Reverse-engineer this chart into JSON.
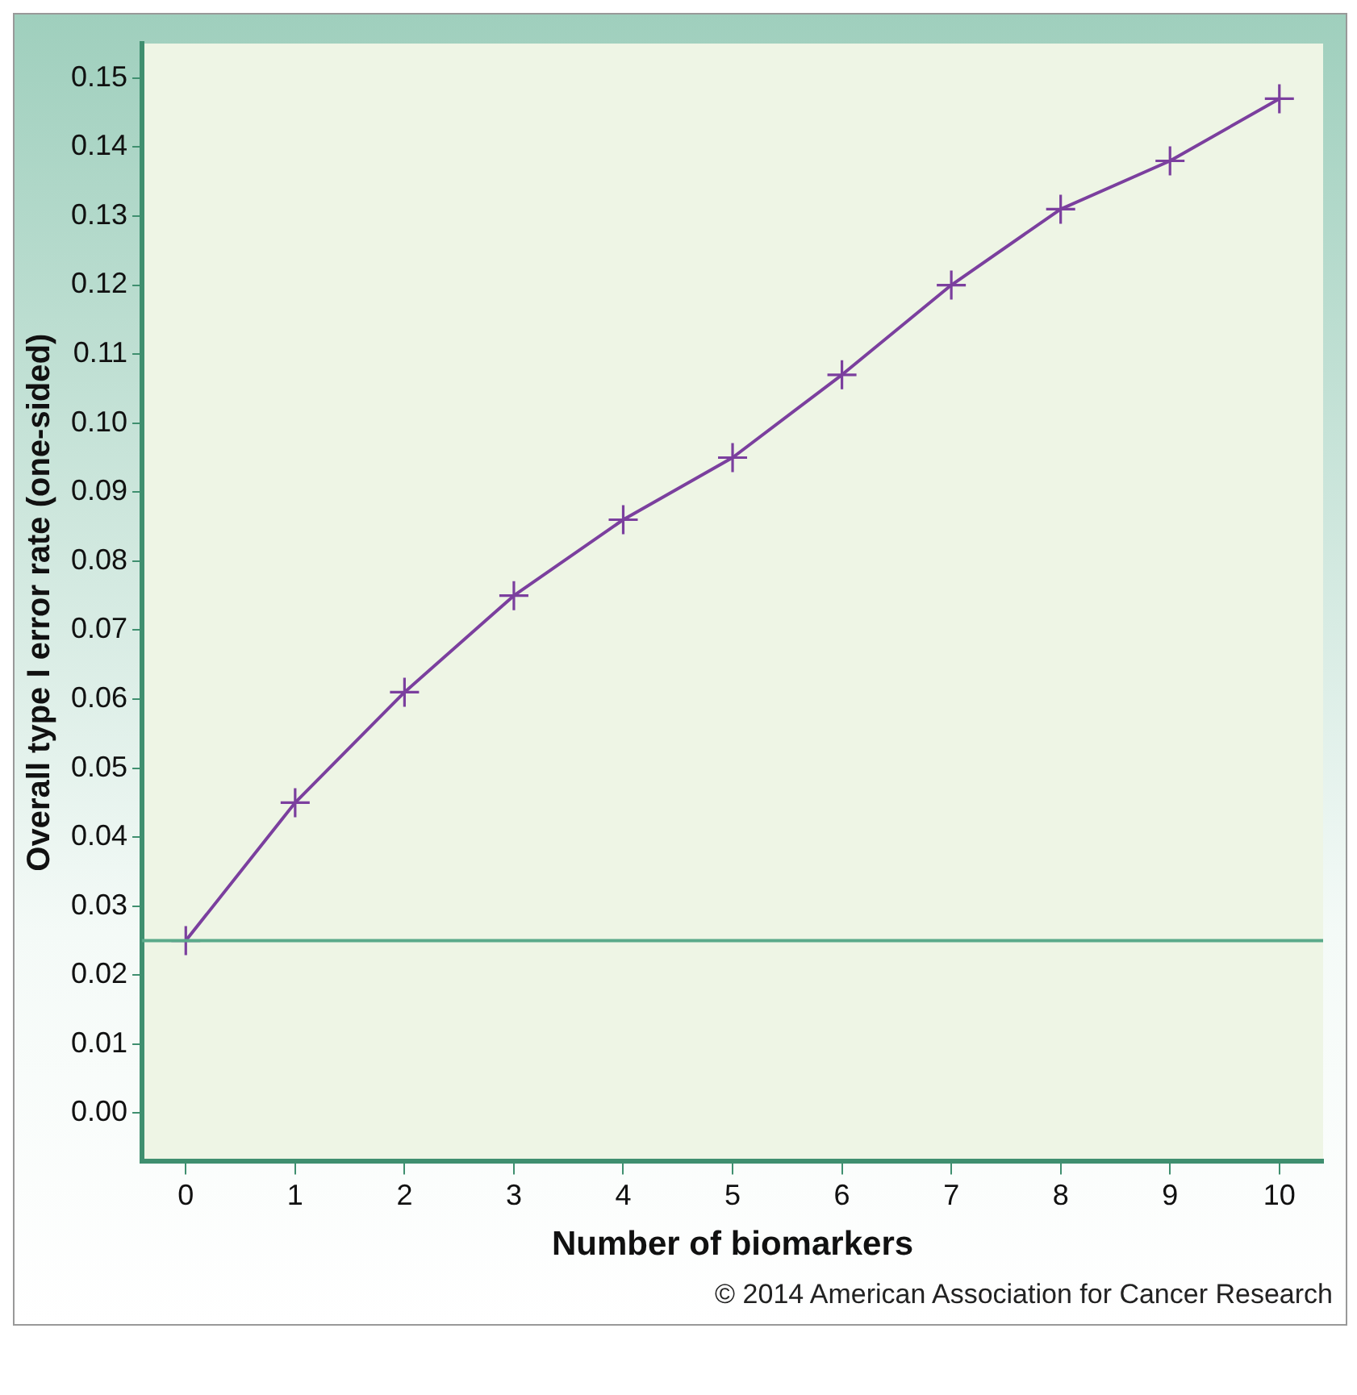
{
  "chart_data": {
    "type": "line",
    "xlabel": "Number of biomarkers",
    "ylabel": "Overall type I error rate (one-sided)",
    "x": [
      0,
      1,
      2,
      3,
      4,
      5,
      6,
      7,
      8,
      9,
      10
    ],
    "series": [
      {
        "color": "#7b3f9e",
        "values": [
          0.025,
          0.045,
          0.061,
          0.075,
          0.086,
          0.095,
          0.107,
          0.12,
          0.131,
          0.138,
          0.147
        ]
      }
    ],
    "xlim": [
      -0.4,
      10.4
    ],
    "xticks": [
      0,
      1,
      2,
      3,
      4,
      5,
      6,
      7,
      8,
      9,
      10
    ],
    "ylim": [
      -0.007,
      0.155
    ],
    "yticks": [
      {
        "value": 0,
        "label": "0.00"
      },
      {
        "value": 0.01,
        "label": "0.01"
      },
      {
        "value": 0.02,
        "label": "0.02"
      },
      {
        "value": 0.03,
        "label": "0.03"
      },
      {
        "value": 0.04,
        "label": "0.04"
      },
      {
        "value": 0.05,
        "label": "0.05"
      },
      {
        "value": 0.06,
        "label": "0.06"
      },
      {
        "value": 0.07,
        "label": "0.07"
      },
      {
        "value": 0.08,
        "label": "0.08"
      },
      {
        "value": 0.09,
        "label": "0.09"
      },
      {
        "value": 0.1,
        "label": "0.10"
      },
      {
        "value": 0.11,
        "label": "0.11"
      },
      {
        "value": 0.12,
        "label": "0.12"
      },
      {
        "value": 0.13,
        "label": "0.13"
      },
      {
        "value": 0.14,
        "label": "0.14"
      },
      {
        "value": 0.15,
        "label": "0.15"
      }
    ],
    "ref_lines": [
      {
        "axis": "y",
        "value": 0.025,
        "color": "#5aaa8a"
      }
    ],
    "marker": "cross",
    "line_style": "solid",
    "grid": false,
    "legend": false,
    "annotations": [
      "© 2014 American Association for Cancer Research"
    ]
  }
}
